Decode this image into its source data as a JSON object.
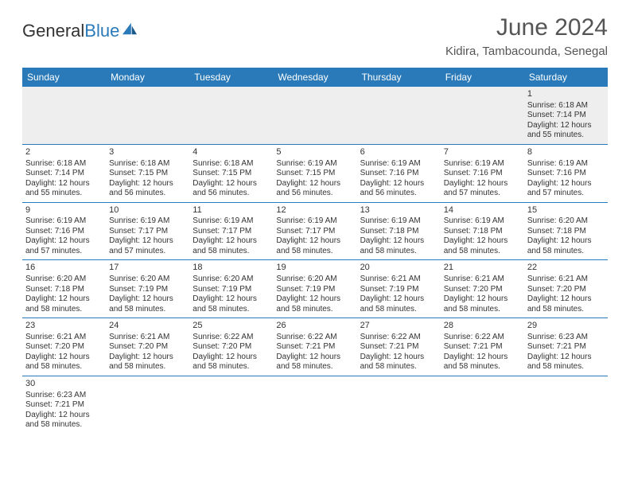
{
  "logo": {
    "text1": "General",
    "text2": "Blue",
    "color_text": "#333333",
    "color_blue": "#2a7ab9"
  },
  "title": "June 2024",
  "location": "Kidira, Tambacounda, Senegal",
  "colors": {
    "header_bg": "#2a7ab9",
    "header_text": "#ffffff",
    "border": "#2a7ab9",
    "empty_bg": "#eeeeee",
    "text": "#333333",
    "title_color": "#555555"
  },
  "day_headers": [
    "Sunday",
    "Monday",
    "Tuesday",
    "Wednesday",
    "Thursday",
    "Friday",
    "Saturday"
  ],
  "weeks": [
    [
      null,
      null,
      null,
      null,
      null,
      null,
      {
        "n": "1",
        "sunrise": "6:18 AM",
        "sunset": "7:14 PM",
        "daylight": "12 hours and 55 minutes."
      }
    ],
    [
      {
        "n": "2",
        "sunrise": "6:18 AM",
        "sunset": "7:14 PM",
        "daylight": "12 hours and 55 minutes."
      },
      {
        "n": "3",
        "sunrise": "6:18 AM",
        "sunset": "7:15 PM",
        "daylight": "12 hours and 56 minutes."
      },
      {
        "n": "4",
        "sunrise": "6:18 AM",
        "sunset": "7:15 PM",
        "daylight": "12 hours and 56 minutes."
      },
      {
        "n": "5",
        "sunrise": "6:19 AM",
        "sunset": "7:15 PM",
        "daylight": "12 hours and 56 minutes."
      },
      {
        "n": "6",
        "sunrise": "6:19 AM",
        "sunset": "7:16 PM",
        "daylight": "12 hours and 56 minutes."
      },
      {
        "n": "7",
        "sunrise": "6:19 AM",
        "sunset": "7:16 PM",
        "daylight": "12 hours and 57 minutes."
      },
      {
        "n": "8",
        "sunrise": "6:19 AM",
        "sunset": "7:16 PM",
        "daylight": "12 hours and 57 minutes."
      }
    ],
    [
      {
        "n": "9",
        "sunrise": "6:19 AM",
        "sunset": "7:16 PM",
        "daylight": "12 hours and 57 minutes."
      },
      {
        "n": "10",
        "sunrise": "6:19 AM",
        "sunset": "7:17 PM",
        "daylight": "12 hours and 57 minutes."
      },
      {
        "n": "11",
        "sunrise": "6:19 AM",
        "sunset": "7:17 PM",
        "daylight": "12 hours and 58 minutes."
      },
      {
        "n": "12",
        "sunrise": "6:19 AM",
        "sunset": "7:17 PM",
        "daylight": "12 hours and 58 minutes."
      },
      {
        "n": "13",
        "sunrise": "6:19 AM",
        "sunset": "7:18 PM",
        "daylight": "12 hours and 58 minutes."
      },
      {
        "n": "14",
        "sunrise": "6:19 AM",
        "sunset": "7:18 PM",
        "daylight": "12 hours and 58 minutes."
      },
      {
        "n": "15",
        "sunrise": "6:20 AM",
        "sunset": "7:18 PM",
        "daylight": "12 hours and 58 minutes."
      }
    ],
    [
      {
        "n": "16",
        "sunrise": "6:20 AM",
        "sunset": "7:18 PM",
        "daylight": "12 hours and 58 minutes."
      },
      {
        "n": "17",
        "sunrise": "6:20 AM",
        "sunset": "7:19 PM",
        "daylight": "12 hours and 58 minutes."
      },
      {
        "n": "18",
        "sunrise": "6:20 AM",
        "sunset": "7:19 PM",
        "daylight": "12 hours and 58 minutes."
      },
      {
        "n": "19",
        "sunrise": "6:20 AM",
        "sunset": "7:19 PM",
        "daylight": "12 hours and 58 minutes."
      },
      {
        "n": "20",
        "sunrise": "6:21 AM",
        "sunset": "7:19 PM",
        "daylight": "12 hours and 58 minutes."
      },
      {
        "n": "21",
        "sunrise": "6:21 AM",
        "sunset": "7:20 PM",
        "daylight": "12 hours and 58 minutes."
      },
      {
        "n": "22",
        "sunrise": "6:21 AM",
        "sunset": "7:20 PM",
        "daylight": "12 hours and 58 minutes."
      }
    ],
    [
      {
        "n": "23",
        "sunrise": "6:21 AM",
        "sunset": "7:20 PM",
        "daylight": "12 hours and 58 minutes."
      },
      {
        "n": "24",
        "sunrise": "6:21 AM",
        "sunset": "7:20 PM",
        "daylight": "12 hours and 58 minutes."
      },
      {
        "n": "25",
        "sunrise": "6:22 AM",
        "sunset": "7:20 PM",
        "daylight": "12 hours and 58 minutes."
      },
      {
        "n": "26",
        "sunrise": "6:22 AM",
        "sunset": "7:21 PM",
        "daylight": "12 hours and 58 minutes."
      },
      {
        "n": "27",
        "sunrise": "6:22 AM",
        "sunset": "7:21 PM",
        "daylight": "12 hours and 58 minutes."
      },
      {
        "n": "28",
        "sunrise": "6:22 AM",
        "sunset": "7:21 PM",
        "daylight": "12 hours and 58 minutes."
      },
      {
        "n": "29",
        "sunrise": "6:23 AM",
        "sunset": "7:21 PM",
        "daylight": "12 hours and 58 minutes."
      }
    ],
    [
      {
        "n": "30",
        "sunrise": "6:23 AM",
        "sunset": "7:21 PM",
        "daylight": "12 hours and 58 minutes."
      },
      null,
      null,
      null,
      null,
      null,
      null
    ]
  ],
  "labels": {
    "sunrise": "Sunrise:",
    "sunset": "Sunset:",
    "daylight": "Daylight:"
  }
}
